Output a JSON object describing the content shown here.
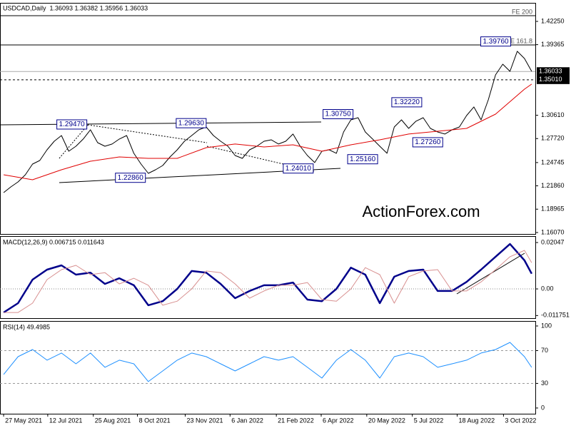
{
  "chart_data": [
    {
      "type": "line",
      "title": "USDCAD,Daily  1.36093 1.36382 1.35956 1.36033",
      "watermark": "ActionForex.com",
      "xlim": [
        -0.5,
        73.5
      ],
      "ylim": [
        1.1589,
        1.4446
      ],
      "yticks": [
        {
          "value": 1.4225,
          "label": "1.42250"
        },
        {
          "value": 1.39365,
          "label": "1.39365"
        },
        {
          "value": 1.3061,
          "label": "1.30610"
        },
        {
          "value": 1.2772,
          "label": "1.27720"
        },
        {
          "value": 1.24745,
          "label": "1.24745"
        },
        {
          "value": 1.2186,
          "label": "1.21860"
        },
        {
          "value": 1.18965,
          "label": "1.18965"
        },
        {
          "value": 1.1607,
          "label": "1.16070"
        }
      ],
      "x": [
        0,
        1,
        2,
        3,
        4,
        5,
        6,
        7,
        8,
        9,
        10,
        11,
        12,
        13,
        14,
        15,
        16,
        17,
        18,
        19,
        20,
        21,
        22,
        23,
        24,
        25,
        26,
        27,
        28,
        29,
        30,
        31,
        32,
        33,
        34,
        35,
        36,
        37,
        38,
        39,
        40,
        41,
        42,
        43,
        44,
        45,
        46,
        47,
        48,
        49,
        50,
        51,
        52,
        53,
        54,
        55,
        56,
        57,
        58,
        59,
        60,
        61,
        62,
        63,
        64,
        65,
        66,
        67,
        68,
        69,
        70,
        71,
        72,
        73
      ],
      "series": [
        {
          "color": "#000000",
          "width": 1,
          "values": [
            1.2102,
            1.2173,
            1.2235,
            1.2323,
            1.2456,
            1.25,
            1.2633,
            1.2739,
            1.281,
            1.2615,
            1.2677,
            1.2766,
            1.2881,
            1.2721,
            1.2677,
            1.2704,
            1.2766,
            1.281,
            1.2589,
            1.2456,
            1.2341,
            1.2385,
            1.2438,
            1.2544,
            1.2633,
            1.2739,
            1.281,
            1.2881,
            1.2916,
            1.281,
            1.2739,
            1.2677,
            1.2562,
            1.2527,
            1.2633,
            1.2677,
            1.2739,
            1.2757,
            1.2704,
            1.2739,
            1.2828,
            1.2677,
            1.2562,
            1.2474,
            1.2615,
            1.2633,
            1.2589,
            1.2854,
            1.3004,
            1.3031,
            1.2854,
            1.2766,
            1.2677,
            1.2589,
            1.2916,
            1.3004,
            1.2898,
            1.2987,
            1.3031,
            1.2898,
            1.2854,
            1.2828,
            1.2881,
            1.2916,
            1.3057,
            1.3164,
            1.3004,
            1.3252,
            1.3562,
            1.3694,
            1.3606,
            1.3854,
            1.3765,
            1.3606
          ]
        },
        {
          "color": "#e00000",
          "width": 1,
          "x": [
            0,
            4,
            8,
            12,
            16,
            20,
            24,
            28,
            32,
            36,
            40,
            44,
            48,
            52,
            56,
            60,
            64,
            68,
            72,
            73
          ],
          "values": [
            1.2323,
            1.2261,
            1.2385,
            1.2491,
            1.2544,
            1.2527,
            1.2527,
            1.2659,
            1.2704,
            1.2668,
            1.2695,
            1.2615,
            1.2695,
            1.2757,
            1.2828,
            1.2863,
            1.2898,
            1.3075,
            1.3385,
            1.3447
          ]
        }
      ],
      "levels": [
        {
          "value": 1.4296,
          "label": "FE 200",
          "dash": false,
          "marker": "text"
        },
        {
          "value": 1.3933,
          "label": "FE 161.8",
          "dash": false,
          "marker": "text"
        },
        {
          "value": 1.36033,
          "label": "1.36033",
          "dash": false,
          "marker": "axis"
        },
        {
          "value": 1.3501,
          "label": "1.35010",
          "dash": true,
          "marker": "axis"
        }
      ],
      "annotations": [
        {
          "x": 11.6,
          "value": 1.2947,
          "label": "1.29470"
        },
        {
          "x": 19.7,
          "value": 1.2286,
          "label": "1.22860"
        },
        {
          "x": 28.1,
          "value": 1.2963,
          "label": "1.29630"
        },
        {
          "x": 42.9,
          "value": 1.2401,
          "label": "1.24010"
        },
        {
          "x": 48.4,
          "value": 1.3075,
          "label": "1.30750"
        },
        {
          "x": 51.8,
          "value": 1.2516,
          "label": "1.25160"
        },
        {
          "x": 57.9,
          "value": 1.3222,
          "label": "1.32220"
        },
        {
          "x": 60.8,
          "value": 1.2726,
          "label": "1.27260"
        },
        {
          "x": 70.2,
          "value": 1.3976,
          "label": "1.39760"
        }
      ]
    },
    {
      "type": "line",
      "title": "MACD(12,26,9) 0.006715 0.011643",
      "xlim": [
        -0.5,
        73.5
      ],
      "ylim": [
        -0.0129,
        0.02299
      ],
      "yticks": [
        {
          "value": 0.02047,
          "label": "0.02047"
        },
        {
          "value": 0,
          "label": "0.00"
        },
        {
          "value": -0.011751,
          "label": "-0.011751"
        }
      ],
      "zero_line": true,
      "x": [
        0,
        2,
        4,
        6,
        8,
        10,
        12,
        14,
        16,
        18,
        20,
        22,
        24,
        26,
        28,
        30,
        32,
        34,
        36,
        38,
        40,
        42,
        44,
        46,
        48,
        50,
        52,
        54,
        56,
        58,
        60,
        62,
        64,
        66,
        68,
        70,
        72,
        73
      ],
      "series": [
        {
          "color": "#00008b",
          "width": 2.5,
          "values": [
            -0.0104,
            -0.0063,
            0.0041,
            0.0085,
            0.0104,
            0.0063,
            0.0072,
            0.0022,
            0.0047,
            0.0016,
            -0.0072,
            -0.0054,
            0,
            0.0079,
            0.0072,
            0.0022,
            -0.0041,
            -0.0009,
            0.0016,
            0.0016,
            0.0028,
            -0.0047,
            -0.0054,
            0,
            0.0094,
            0.0063,
            -0.0063,
            0.0054,
            0.0079,
            0.0085,
            -0.0009,
            -0.0009,
            0.0031,
            0.0085,
            0.0142,
            0.0198,
            0.0126,
            0.0067
          ]
        },
        {
          "color": "#d89090",
          "width": 1,
          "values": [
            -0.0104,
            -0.0104,
            -0.0063,
            0.0041,
            0.0085,
            0.0104,
            0.0063,
            0.0072,
            0.0022,
            0.0047,
            0.0016,
            -0.0072,
            -0.0054,
            0,
            0.0079,
            0.0072,
            0.0022,
            -0.0041,
            -0.0009,
            0.0016,
            0.0016,
            0.0028,
            -0.0047,
            -0.0054,
            0,
            0.0094,
            0.0063,
            -0.0063,
            0.0054,
            0.0079,
            0.0085,
            -0.0009,
            -0.0009,
            0.0031,
            0.0085,
            0.0142,
            0.017,
            0.0116
          ]
        }
      ]
    },
    {
      "type": "line",
      "title": "RSI(14) 49.4985",
      "xlim": [
        -0.5,
        73.5
      ],
      "ylim": [
        -7,
        105.2
      ],
      "yticks": [
        100,
        70,
        30,
        0
      ],
      "levels": [
        70,
        30
      ],
      "xticks": [
        {
          "value": 0,
          "label": "27 May 2021"
        },
        {
          "value": 6.1,
          "label": "12 Jul 2021"
        },
        {
          "value": 12.4,
          "label": "25 Aug 2021"
        },
        {
          "value": 18.5,
          "label": "8 Oct 2021"
        },
        {
          "value": 25.1,
          "label": "23 Nov 2021"
        },
        {
          "value": 31.3,
          "label": "6 Jan 2022"
        },
        {
          "value": 37.7,
          "label": "21 Feb 2022"
        },
        {
          "value": 43.9,
          "label": "6 Apr 2022"
        },
        {
          "value": 50.2,
          "label": "20 May 2022"
        },
        {
          "value": 56.5,
          "label": "5 Jul 2022"
        },
        {
          "value": 62.7,
          "label": "18 Aug 2022"
        },
        {
          "value": 69.1,
          "label": "3 Oct 2022"
        }
      ],
      "x": [
        0,
        2,
        4,
        6,
        8,
        10,
        12,
        14,
        16,
        18,
        20,
        22,
        24,
        26,
        28,
        30,
        32,
        34,
        36,
        38,
        40,
        42,
        44,
        46,
        48,
        50,
        52,
        54,
        56,
        58,
        60,
        62,
        64,
        66,
        68,
        70,
        72,
        73
      ],
      "series": [
        {
          "color": "#1e90ff",
          "width": 1,
          "values": [
            40.9,
            62.6,
            71.3,
            58.3,
            67,
            53.9,
            67,
            49.6,
            58.3,
            53.9,
            32.2,
            45.2,
            58.3,
            67,
            62.6,
            53.9,
            45.2,
            53.9,
            62.6,
            58.3,
            62.6,
            49.6,
            36.5,
            58.3,
            71.3,
            58.3,
            36.5,
            62.6,
            67,
            62.6,
            49.6,
            53.9,
            58.3,
            67,
            71.3,
            80,
            62.6,
            49.5
          ]
        }
      ]
    }
  ]
}
